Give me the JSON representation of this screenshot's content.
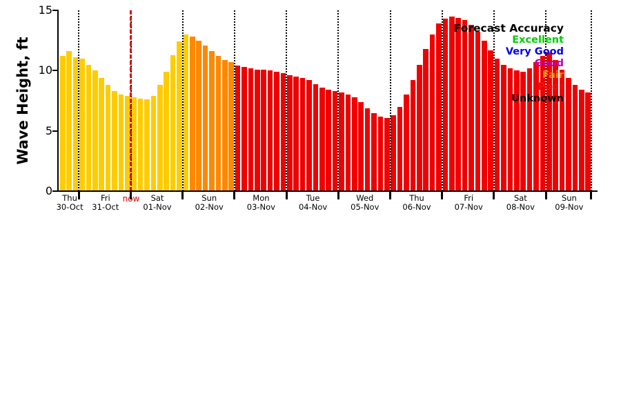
{
  "legend": {
    "title": "Forecast Accuracy",
    "items": [
      {
        "label": "Excellent",
        "color": "#00cc00"
      },
      {
        "label": "Very Good",
        "color": "#0000ee"
      },
      {
        "label": "Good",
        "color": "#bb00bb"
      },
      {
        "label": "Fair",
        "color": "#ff8800"
      },
      {
        "label": "Poor",
        "color": "#ee1111"
      },
      {
        "label": "Unknown",
        "color": "#000000"
      }
    ]
  },
  "chart_data": {
    "type": "bar",
    "title": "",
    "ylabel": "Wave Height, ft",
    "xlabel": "",
    "ylim": [
      0,
      15
    ],
    "yticks": [
      0,
      5,
      10,
      15
    ],
    "grid": "vertical-dotted-at-day-boundaries",
    "days": [
      {
        "weekday": "Thu",
        "date": "30-Oct",
        "bars": 3
      },
      {
        "weekday": "Fri",
        "date": "31-Oct",
        "bars": 8
      },
      {
        "weekday": "Sat",
        "date": "01-Nov",
        "bars": 8
      },
      {
        "weekday": "Sun",
        "date": "02-Nov",
        "bars": 8
      },
      {
        "weekday": "Mon",
        "date": "03-Nov",
        "bars": 8
      },
      {
        "weekday": "Tue",
        "date": "04-Nov",
        "bars": 8
      },
      {
        "weekday": "Wed",
        "date": "05-Nov",
        "bars": 8
      },
      {
        "weekday": "Thu",
        "date": "06-Nov",
        "bars": 8
      },
      {
        "weekday": "Fri",
        "date": "07-Nov",
        "bars": 8
      },
      {
        "weekday": "Sat",
        "date": "08-Nov",
        "bars": 8
      },
      {
        "weekday": "Sun",
        "date": "09-Nov",
        "bars": 7
      }
    ],
    "values": [
      11.2,
      11.6,
      11.1,
      11.0,
      10.5,
      10.0,
      9.4,
      8.8,
      8.3,
      8.0,
      7.9,
      7.8,
      7.7,
      7.6,
      7.9,
      8.8,
      9.9,
      11.3,
      12.4,
      13.0,
      12.8,
      12.5,
      12.1,
      11.6,
      11.2,
      10.9,
      10.7,
      10.4,
      10.3,
      10.2,
      10.1,
      10.1,
      10.0,
      9.9,
      9.8,
      9.6,
      9.5,
      9.4,
      9.2,
      8.9,
      8.6,
      8.4,
      8.3,
      8.2,
      8.0,
      7.8,
      7.4,
      6.9,
      6.5,
      6.2,
      6.1,
      6.3,
      7.0,
      8.0,
      9.2,
      10.5,
      11.8,
      13.0,
      13.9,
      14.3,
      14.5,
      14.4,
      14.2,
      13.8,
      13.2,
      12.5,
      11.7,
      11.0,
      10.5,
      10.2,
      10.0,
      9.9,
      10.2,
      10.7,
      11.2,
      11.5,
      10.9,
      10.1,
      9.4,
      8.8,
      8.4,
      8.2
    ],
    "bar_color_segments": [
      {
        "color": "#ffcc00",
        "from": 0,
        "to": 19
      },
      {
        "color": "#ff8800",
        "from": 20,
        "to": 26
      },
      {
        "color": "#f00000",
        "from": 27,
        "to": 81
      }
    ],
    "now_line": {
      "label": "now",
      "after_bar_index": 11,
      "color": "#e00000"
    }
  }
}
